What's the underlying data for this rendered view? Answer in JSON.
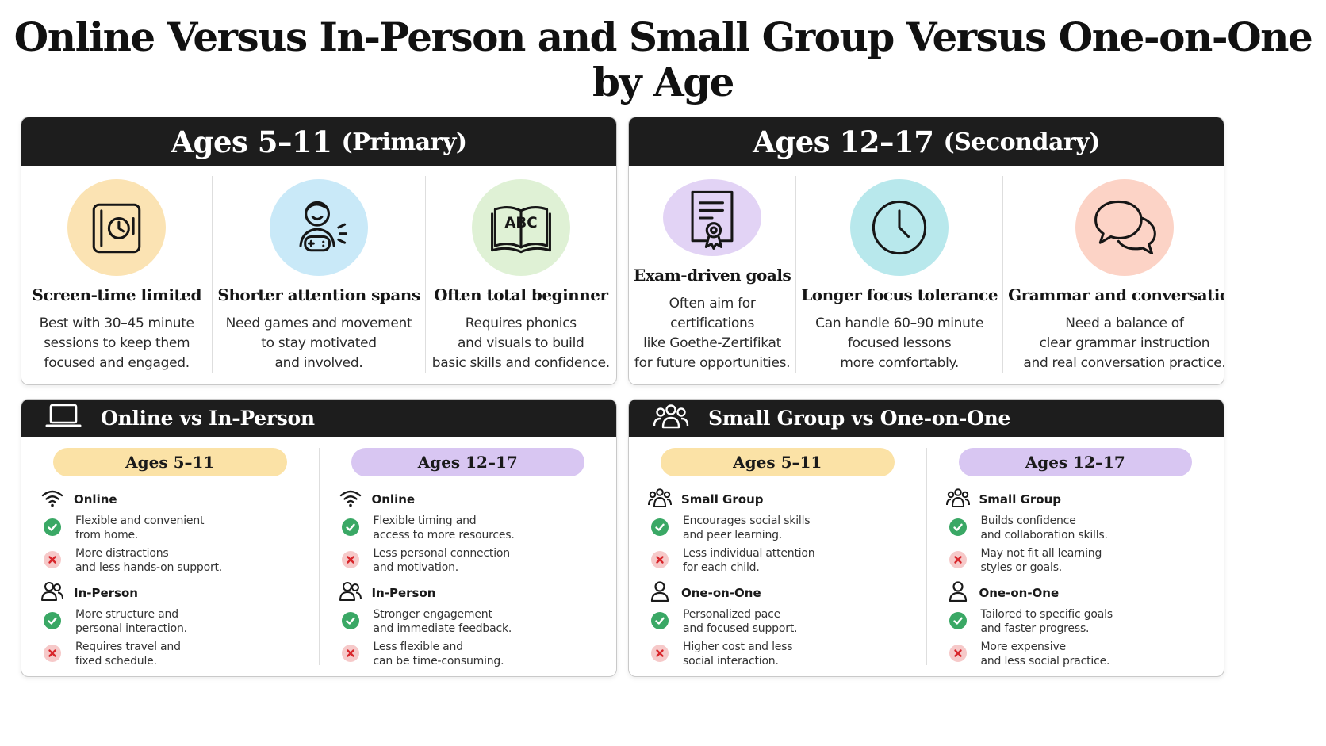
{
  "title": {
    "line1": "Online Versus In-Person and Small Group Versus One-on-One",
    "line2": "by Age"
  },
  "primary": {
    "heading": "Ages 5–11",
    "subheading": "(Primary)",
    "items": [
      {
        "icon": "tablet-clock-icon",
        "color": "#fbe3b3",
        "title": "Screen-time limited",
        "desc": "Best with 30–45 minute\nsessions to keep them\nfocused and engaged."
      },
      {
        "icon": "child-gamepad-icon",
        "color": "#c9e9f8",
        "title": "Shorter attention spans",
        "desc": "Need games and movement\nto stay motivated\nand involved."
      },
      {
        "icon": "abc-book-icon",
        "color": "#dff1d5",
        "title": "Often total beginner",
        "desc": "Requires phonics\nand visuals to build\nbasic skills and confidence."
      }
    ]
  },
  "secondary": {
    "heading": "Ages 12–17",
    "subheading": "(Secondary)",
    "items": [
      {
        "icon": "certificate-icon",
        "color": "#e2d3f5",
        "title": "Exam-driven goals",
        "desc": "Often aim for certifications\nlike Goethe-Zertifikat\nfor future opportunities."
      },
      {
        "icon": "clock-icon",
        "color": "#b8e8ec",
        "title": "Longer focus tolerance",
        "desc": "Can handle 60–90 minute\nfocused lessons\nmore comfortably."
      },
      {
        "icon": "chat-bubbles-icon",
        "color": "#fcd3c6",
        "title": "Grammar and conversation",
        "desc": "Need a balance of\nclear grammar instruction\nand real conversation practice."
      }
    ]
  },
  "online_vs_inperson": {
    "heading": "Online vs In-Person",
    "icon": "laptop-icon",
    "columns": [
      {
        "pill": "Ages 5–11",
        "pill_color": "yellow",
        "groups": [
          {
            "icon": "wifi-icon",
            "label": "Online",
            "points": [
              {
                "type": "pro",
                "text": "Flexible and convenient\nfrom home."
              },
              {
                "type": "con",
                "text": "More distractions\nand less hands-on support."
              }
            ]
          },
          {
            "icon": "people-icon",
            "label": "In-Person",
            "points": [
              {
                "type": "pro",
                "text": "More structure and\npersonal interaction."
              },
              {
                "type": "con",
                "text": "Requires travel and\nfixed schedule."
              }
            ]
          }
        ]
      },
      {
        "pill": "Ages 12–17",
        "pill_color": "purple",
        "groups": [
          {
            "icon": "wifi-icon",
            "label": "Online",
            "points": [
              {
                "type": "pro",
                "text": "Flexible timing and\naccess to more resources."
              },
              {
                "type": "con",
                "text": "Less personal connection\nand motivation."
              }
            ]
          },
          {
            "icon": "people-icon",
            "label": "In-Person",
            "points": [
              {
                "type": "pro",
                "text": "Stronger engagement\nand immediate feedback."
              },
              {
                "type": "con",
                "text": "Less flexible and\ncan be time-consuming."
              }
            ]
          }
        ]
      }
    ]
  },
  "group_vs_one": {
    "heading": "Small Group vs One-on-One",
    "icon": "group-icon",
    "columns": [
      {
        "pill": "Ages 5–11",
        "pill_color": "yellow",
        "groups": [
          {
            "icon": "group-icon",
            "label": "Small Group",
            "points": [
              {
                "type": "pro",
                "text": "Encourages social skills\nand peer learning."
              },
              {
                "type": "con",
                "text": "Less individual attention\nfor each child."
              }
            ]
          },
          {
            "icon": "person-icon",
            "label": "One-on-One",
            "points": [
              {
                "type": "pro",
                "text": "Personalized pace\nand focused support."
              },
              {
                "type": "con",
                "text": "Higher cost and less\nsocial interaction."
              }
            ]
          }
        ]
      },
      {
        "pill": "Ages 12–17",
        "pill_color": "purple",
        "groups": [
          {
            "icon": "group-icon",
            "label": "Small Group",
            "points": [
              {
                "type": "pro",
                "text": "Builds confidence\nand collaboration skills."
              },
              {
                "type": "con",
                "text": "May not fit all learning\nstyles or goals."
              }
            ]
          },
          {
            "icon": "person-icon",
            "label": "One-on-One",
            "points": [
              {
                "type": "pro",
                "text": "Tailored to specific goals\nand faster progress."
              },
              {
                "type": "con",
                "text": "More expensive\nand less social practice."
              }
            ]
          }
        ]
      }
    ]
  }
}
